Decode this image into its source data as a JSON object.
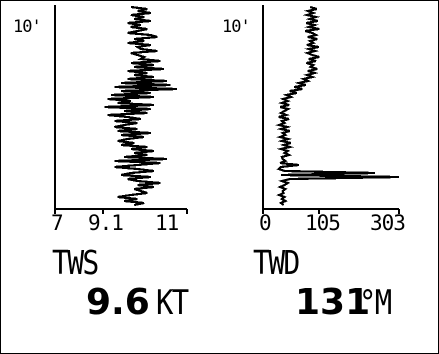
{
  "panels": [
    {
      "id": "tws",
      "y_max_label": "10'",
      "x_ticks": [
        "7",
        "9.1",
        "11"
      ],
      "label": "TWS",
      "value": "9.6",
      "unit": "KT"
    },
    {
      "id": "twd",
      "y_max_label": "10'",
      "x_ticks": [
        "0",
        "105",
        "303"
      ],
      "label": "TWD",
      "value": "131",
      "unit": "°M"
    }
  ],
  "chart_data": [
    {
      "type": "line",
      "orientation": "vertical-time",
      "ylabel": "10'",
      "xlim": [
        7,
        11
      ],
      "x_tick_labels": [
        "7",
        "9.1",
        "11"
      ],
      "grid": false,
      "series": [
        {
          "values": [
            9.3,
            9.8,
            9.5,
            9.9,
            9.3,
            9.7,
            9.4,
            9.9,
            9.2,
            9.6,
            9.3,
            9.8,
            9.5,
            9.2,
            9.9,
            10.1,
            9.4,
            9.7,
            9.2,
            9.9,
            9.5,
            9.6,
            10.1,
            9.3,
            9.5,
            9.7,
            9.6,
            10.2,
            9.3,
            10.0,
            9.4,
            10.3,
            9.2,
            9.8,
            9.4,
            10.0,
            9.2,
            10.4,
            9.0,
            10.5,
            8.8,
            10.7,
            9.0,
            9.9,
            8.7,
            10.0,
            8.6,
            9.3,
            8.9,
            10.0,
            8.5,
            9.9,
            9.1,
            9.8,
            8.6,
            9.2,
            9.6,
            8.8,
            9.5,
            9.1,
            8.8,
            9.5,
            8.9,
            9.9,
            9.0,
            9.7,
            9.2,
            8.9,
            9.4,
            9.0,
            9.8,
            9.3,
            10.0,
            9.4,
            9.8,
            9.1,
            10.4,
            8.8,
            10.2,
            9.5,
            8.8,
            9.5,
            10.0,
            9.3,
            9.0,
            9.9,
            9.2,
            9.5,
            10.2,
            9.5,
            10.0,
            9.4,
            9.6,
            9.8,
            9.3,
            8.9,
            9.5,
            9.1,
            9.7,
            9.4
          ]
        }
      ]
    },
    {
      "type": "line",
      "orientation": "vertical-time",
      "ylabel": "10'",
      "xlim": [
        0,
        303
      ],
      "x_tick_labels": [
        "0",
        "105",
        "303"
      ],
      "grid": false,
      "series": [
        {
          "values": [
            105,
            120,
            100,
            112,
            98,
            118,
            104,
            122,
            96,
            115,
            102,
            125,
            94,
            110,
            118,
            100,
            121,
            105,
            112,
            98,
            124,
            102,
            116,
            99,
            110,
            125,
            102,
            118,
            97,
            112,
            106,
            121,
            100,
            115,
            98,
            110,
            90,
            100,
            80,
            95,
            70,
            88,
            60,
            75,
            52,
            62,
            45,
            55,
            42,
            58,
            38,
            56,
            48,
            40,
            52,
            35,
            58,
            42,
            48,
            36,
            54,
            40,
            60,
            44,
            50,
            38,
            56,
            42,
            62,
            46,
            60,
            40,
            55,
            48,
            58,
            42,
            44,
            50,
            38,
            80,
            40,
            35,
            48,
            250,
            40,
            303,
            60,
            42,
            55,
            48,
            38,
            50,
            44,
            46,
            36,
            48,
            42,
            50,
            40,
            46
          ]
        }
      ]
    }
  ]
}
